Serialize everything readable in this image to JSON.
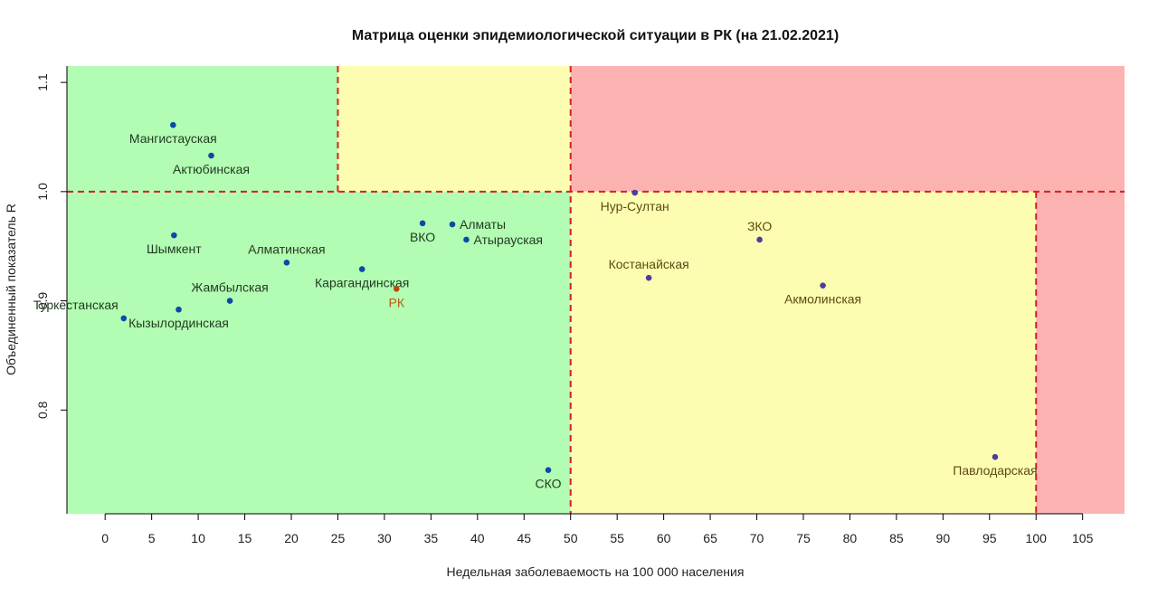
{
  "chart_data": {
    "type": "scatter",
    "title": "Матрица оценки эпидемиологической ситуации в РК (на 21.02.2021)",
    "xlabel": "Недельная заболеваемость на 100 000 населения",
    "ylabel": "Объединенный показатель R",
    "xlim": [
      -4.1,
      109.5
    ],
    "ylim": [
      0.705,
      1.115
    ],
    "x_ticks": [
      0,
      5,
      10,
      15,
      20,
      25,
      30,
      35,
      40,
      45,
      50,
      55,
      60,
      65,
      70,
      75,
      80,
      85,
      90,
      95,
      100,
      105
    ],
    "y_ticks": [
      0.8,
      0.9,
      1.0,
      1.1
    ],
    "y_tick_labels": [
      "0.8",
      "0.9",
      "1.0",
      "1.1"
    ],
    "grid": false,
    "zones": [
      {
        "x": [
          -4.1,
          25
        ],
        "y": [
          1.0,
          1.115
        ],
        "color": "#b3fcb3"
      },
      {
        "x": [
          25,
          50
        ],
        "y": [
          1.0,
          1.115
        ],
        "color": "#fdfdb2"
      },
      {
        "x": [
          50,
          109.5
        ],
        "y": [
          1.0,
          1.115
        ],
        "color": "#fdb2b2"
      },
      {
        "x": [
          -4.1,
          50
        ],
        "y": [
          0.705,
          1.0
        ],
        "color": "#b3fcb3"
      },
      {
        "x": [
          50,
          100
        ],
        "y": [
          0.705,
          1.0
        ],
        "color": "#fdfdb2"
      },
      {
        "x": [
          100,
          109.5
        ],
        "y": [
          0.705,
          1.0
        ],
        "color": "#fdb2b2"
      }
    ],
    "threshold_lines": [
      {
        "orientation": "vertical",
        "x": 25,
        "y": [
          1.0,
          1.115
        ]
      },
      {
        "orientation": "vertical",
        "x": 50,
        "y": [
          0.705,
          1.115
        ]
      },
      {
        "orientation": "vertical",
        "x": 100,
        "y": [
          0.705,
          1.0
        ]
      },
      {
        "orientation": "horizontal",
        "y": 1.0,
        "x": [
          -4.1,
          109.5
        ]
      }
    ],
    "threshold_color": "#d42020",
    "points": [
      {
        "label": "Мангистауская",
        "x": 7.3,
        "y": 1.061,
        "label_pos": "below",
        "color": "#0b4aa6",
        "label_color": "#1f3a1f"
      },
      {
        "label": "Актюбинская",
        "x": 11.4,
        "y": 1.033,
        "label_pos": "below",
        "color": "#0b4aa6",
        "label_color": "#1f3a1f"
      },
      {
        "label": "Шымкент",
        "x": 7.4,
        "y": 0.96,
        "label_pos": "below",
        "color": "#0b4aa6",
        "label_color": "#1f3a1f"
      },
      {
        "label": "Алматинская",
        "x": 19.5,
        "y": 0.935,
        "label_pos": "above",
        "color": "#0b4aa6",
        "label_color": "#1f3a1f"
      },
      {
        "label": "Жамбылская",
        "x": 13.4,
        "y": 0.9,
        "label_pos": "above",
        "color": "#0b4aa6",
        "label_color": "#1f3a1f"
      },
      {
        "label": "Туркестанская",
        "x": 2.0,
        "y": 0.884,
        "label_pos": "left",
        "color": "#0b4aa6",
        "label_color": "#1f3a1f"
      },
      {
        "label": "Кызылординская",
        "x": 7.9,
        "y": 0.892,
        "label_pos": "below",
        "color": "#0b4aa6",
        "label_color": "#1f3a1f"
      },
      {
        "label": "Карагандинская",
        "x": 27.6,
        "y": 0.929,
        "label_pos": "below",
        "color": "#0b4aa6",
        "label_color": "#1f3a1f"
      },
      {
        "label": "РК",
        "x": 31.3,
        "y": 0.911,
        "label_pos": "below",
        "color": "#b84a06",
        "label_color": "#b85a10"
      },
      {
        "label": "ВКО",
        "x": 34.1,
        "y": 0.971,
        "label_pos": "below",
        "color": "#0b4aa6",
        "label_color": "#1f3a1f"
      },
      {
        "label": "Алматы",
        "x": 37.3,
        "y": 0.97,
        "label_pos": "right",
        "color": "#0b4aa6",
        "label_color": "#1f3a1f"
      },
      {
        "label": "Атырауская",
        "x": 38.8,
        "y": 0.956,
        "label_pos": "right",
        "color": "#0b4aa6",
        "label_color": "#1f3a1f"
      },
      {
        "label": "СКО",
        "x": 47.6,
        "y": 0.745,
        "label_pos": "below",
        "color": "#0b4aa6",
        "label_color": "#1f3a1f"
      },
      {
        "label": "Нур-Султан",
        "x": 56.9,
        "y": 0.999,
        "label_pos": "below",
        "color": "#4b3f9c",
        "label_color": "#5a4a10"
      },
      {
        "label": "ЗКО",
        "x": 70.3,
        "y": 0.956,
        "label_pos": "above",
        "color": "#4b3f9c",
        "label_color": "#5a4a10"
      },
      {
        "label": "Костанайская",
        "x": 58.4,
        "y": 0.921,
        "label_pos": "above",
        "color": "#4b3f9c",
        "label_color": "#5a4a10"
      },
      {
        "label": "Акмолинская",
        "x": 77.1,
        "y": 0.914,
        "label_pos": "below",
        "color": "#4b3f9c",
        "label_color": "#5a4a10"
      },
      {
        "label": "Павлодарская",
        "x": 95.6,
        "y": 0.757,
        "label_pos": "below",
        "color": "#4b3f9c",
        "label_color": "#5a4a10"
      }
    ]
  }
}
